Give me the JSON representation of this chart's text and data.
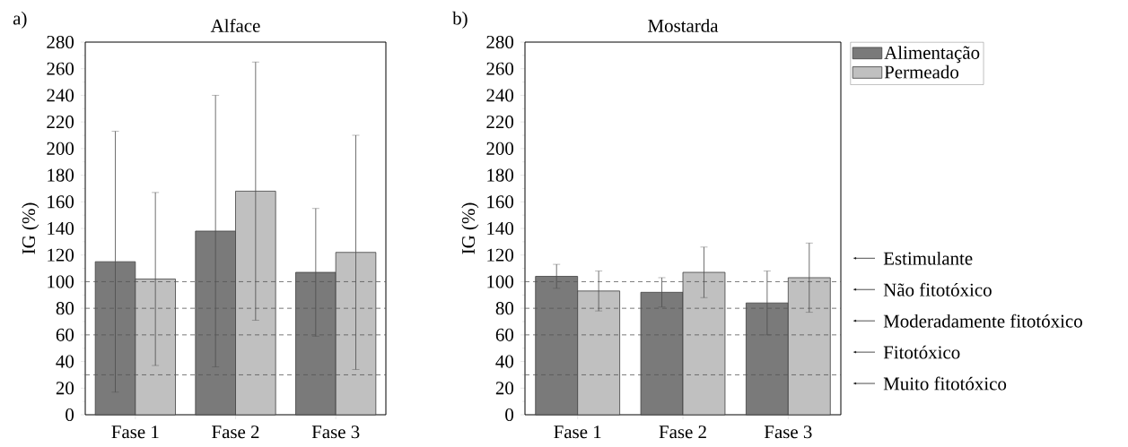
{
  "chart_data": [
    {
      "type": "bar",
      "title": "Alface",
      "ylabel": "IG (%)",
      "categories": [
        "Fase 1",
        "Fase 2",
        "Fase 3"
      ],
      "series": [
        {
          "color": "#7a7a7a",
          "values": [
            115,
            138,
            107
          ],
          "errors": [
            98,
            102,
            48
          ]
        },
        {
          "color": "#c0c0c0",
          "values": [
            102,
            168,
            122
          ],
          "errors": [
            65,
            97,
            88
          ]
        }
      ],
      "ylim": [
        0,
        280
      ],
      "yticks": [
        0,
        20,
        40,
        60,
        80,
        100,
        120,
        140,
        160,
        180,
        200,
        220,
        240,
        260,
        280
      ],
      "ref_lines": [
        {
          "axis": "y",
          "value": 100,
          "line_style": "dashed",
          "color": "#555555"
        },
        {
          "axis": "y",
          "value": 80,
          "line_style": "dashed",
          "color": "#555555"
        },
        {
          "axis": "y",
          "value": 60,
          "line_style": "dashed",
          "color": "#555555"
        },
        {
          "axis": "y",
          "value": 30,
          "line_style": "dashed",
          "color": "#555555"
        }
      ],
      "annotations": [
        "a)"
      ]
    },
    {
      "type": "bar",
      "title": "Mostarda",
      "ylabel": "IG (%)",
      "categories": [
        "Fase 1",
        "Fase 2",
        "Fase 3"
      ],
      "series": [
        {
          "name": "Alimentação",
          "color": "#7a7a7a",
          "values": [
            104,
            92,
            84
          ],
          "errors": [
            9,
            11,
            24
          ]
        },
        {
          "name": "Permeado",
          "color": "#c0c0c0",
          "values": [
            93,
            107,
            103
          ],
          "errors": [
            15,
            19,
            26
          ]
        }
      ],
      "ylim": [
        0,
        280
      ],
      "yticks": [
        0,
        20,
        40,
        60,
        80,
        100,
        120,
        140,
        160,
        180,
        200,
        220,
        240,
        260,
        280
      ],
      "ref_lines": [
        {
          "axis": "y",
          "value": 100,
          "line_style": "dashed",
          "color": "#555555"
        },
        {
          "axis": "y",
          "value": 80,
          "line_style": "dashed",
          "color": "#555555"
        },
        {
          "axis": "y",
          "value": 60,
          "line_style": "dashed",
          "color": "#555555"
        },
        {
          "axis": "y",
          "value": 30,
          "line_style": "dashed",
          "color": "#555555"
        }
      ],
      "legend": "top right",
      "annotations": [
        "b)",
        "Estimulante",
        "Não fitotóxico",
        "Moderadamente fitotóxico",
        "Fitotóxico",
        "Muito fitotóxico"
      ]
    }
  ]
}
